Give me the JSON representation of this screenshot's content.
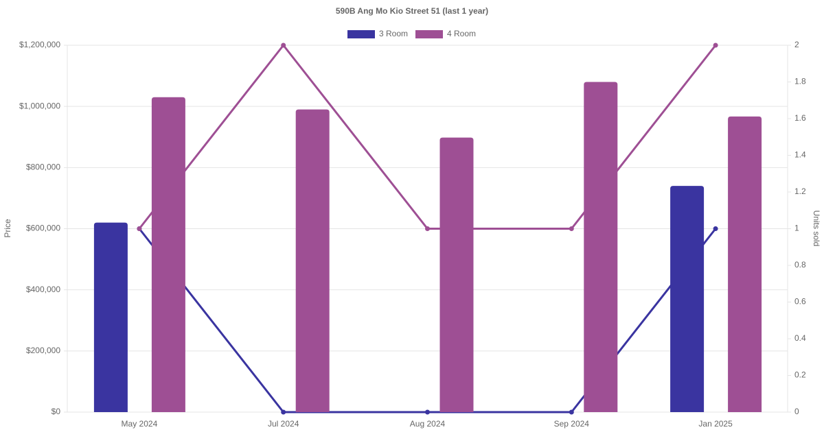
{
  "chart_data": {
    "type": "bar-line",
    "title": "590B Ang Mo Kio Street 51 (last 1 year)",
    "categories": [
      "May 2024",
      "Jul 2024",
      "Aug 2024",
      "Sep 2024",
      "Jan 2025"
    ],
    "ylabel": "Price",
    "y2label": "Units sold",
    "ylim": [
      0,
      1200000
    ],
    "yticks": [
      {
        "value": 0,
        "label": "$0"
      },
      {
        "value": 200000,
        "label": "$200,000"
      },
      {
        "value": 400000,
        "label": "$400,000"
      },
      {
        "value": 600000,
        "label": "$600,000"
      },
      {
        "value": 800000,
        "label": "$800,000"
      },
      {
        "value": 1000000,
        "label": "$1,000,000"
      },
      {
        "value": 1200000,
        "label": "$1,200,000"
      }
    ],
    "y2lim": [
      0,
      2
    ],
    "y2ticks": [
      0,
      0.2,
      0.4,
      0.6,
      0.8,
      1,
      1.2,
      1.4,
      1.6,
      1.8,
      2
    ],
    "grid": true,
    "series": [
      {
        "name": "3 Room",
        "color": "#3a34a0",
        "values": [
          620000,
          null,
          null,
          null,
          740000
        ],
        "units": [
          1,
          0,
          0,
          0,
          1
        ]
      },
      {
        "name": "4 Room",
        "color": "#9e4f94",
        "values": [
          1030000,
          990000,
          898000,
          1080000,
          967000
        ],
        "units": [
          1,
          2,
          1,
          1,
          2
        ]
      }
    ]
  }
}
